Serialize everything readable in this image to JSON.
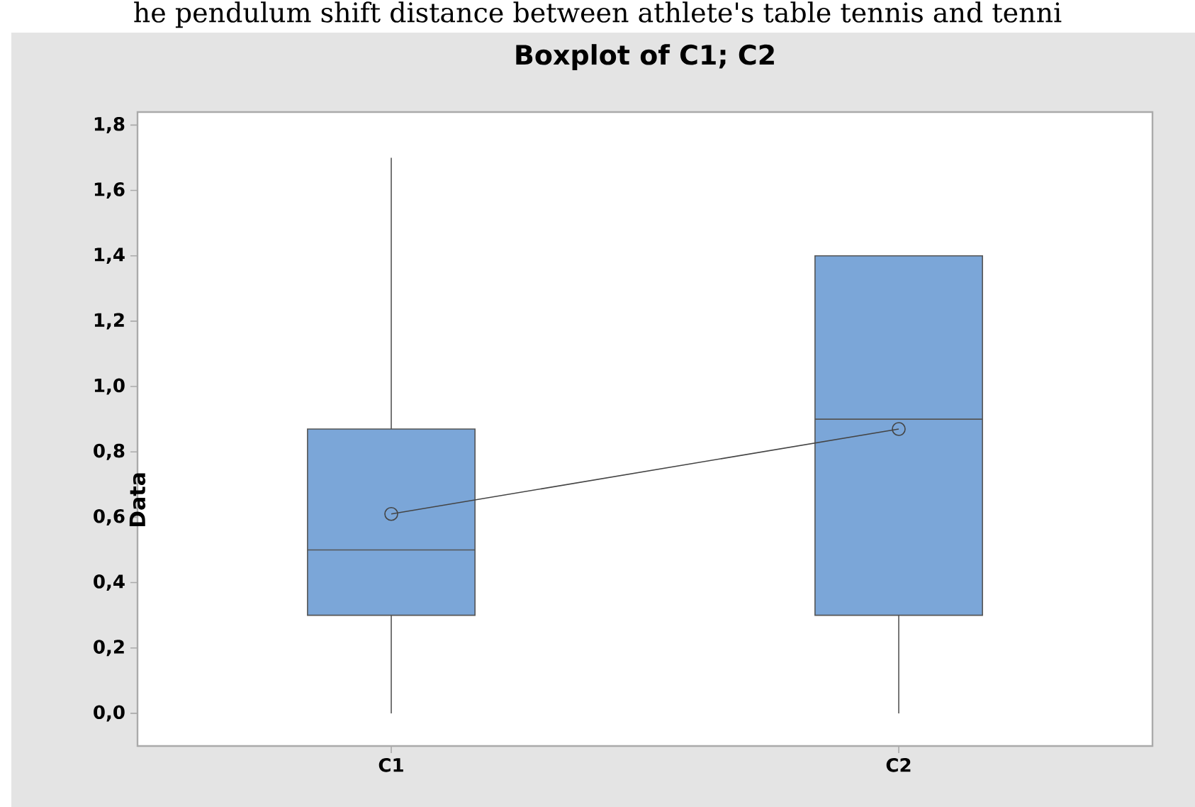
{
  "chart_data": {
    "type": "box",
    "title": "Boxplot of C1; C2",
    "ylabel": "Data",
    "annotations": [
      "he pendulum shift distance between athlete's table tennis and tenni"
    ],
    "categories": [
      "C1",
      "C2"
    ],
    "series": [
      {
        "color": "#7ba6d8",
        "boxes": [
          {
            "low": 0,
            "q1": 0.3,
            "median": 0.5,
            "q3": 0.87,
            "high": 1.7
          },
          {
            "low": 0,
            "q1": 0.3,
            "median": 0.9,
            "q3": 1.4,
            "high": 1.4
          }
        ]
      },
      {
        "type": "line",
        "x": [
          "C1",
          "C2"
        ],
        "values": [
          0.61,
          0.87
        ],
        "color": "#444444",
        "marker": "circle"
      }
    ],
    "ylim": [
      -0.1,
      1.84
    ],
    "yticks": [
      {
        "value": 0,
        "label": "0,0"
      },
      {
        "value": 0.2,
        "label": "0,2"
      },
      {
        "value": 0.4,
        "label": "0,4"
      },
      {
        "value": 0.6,
        "label": "0,6"
      },
      {
        "value": 0.8,
        "label": "0,8"
      },
      {
        "value": 1.0,
        "label": "1,0"
      },
      {
        "value": 1.2,
        "label": "1,2"
      },
      {
        "value": 1.4,
        "label": "1,4"
      },
      {
        "value": 1.6,
        "label": "1,6"
      },
      {
        "value": 1.8,
        "label": "1,8"
      }
    ],
    "grid": false
  }
}
